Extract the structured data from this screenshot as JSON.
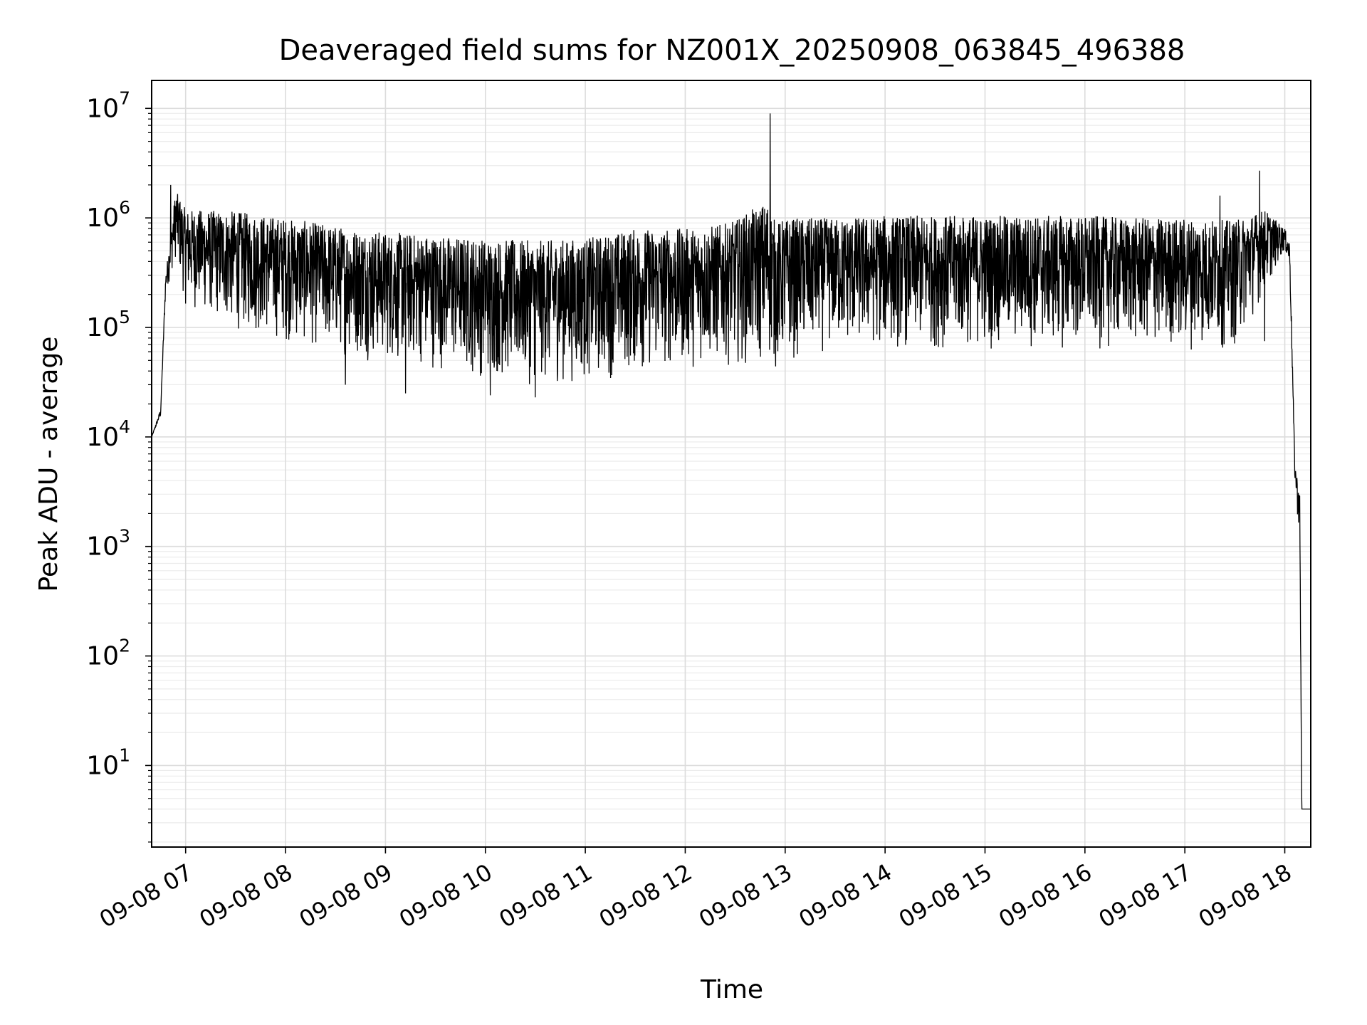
{
  "chart_data": {
    "type": "line",
    "title": "Deaveraged field sums for NZ001X_20250908_063845_496388",
    "xlabel": "Time",
    "ylabel": "Peak ADU - average",
    "yscale": "log",
    "ylim": [
      1.8,
      18000000
    ],
    "xlim_hours": [
      6.66,
      18.26
    ],
    "x_tick_labels": [
      "09-08 07",
      "09-08 08",
      "09-08 09",
      "09-08 10",
      "09-08 11",
      "09-08 12",
      "09-08 13",
      "09-08 14",
      "09-08 15",
      "09-08 16",
      "09-08 17",
      "09-08 18"
    ],
    "x_tick_hours": [
      7,
      8,
      9,
      10,
      11,
      12,
      13,
      14,
      15,
      16,
      17,
      18
    ],
    "y_ticks": [
      {
        "value": 10,
        "base": "10",
        "exp": "1"
      },
      {
        "value": 100,
        "base": "10",
        "exp": "2"
      },
      {
        "value": 1000,
        "base": "10",
        "exp": "3"
      },
      {
        "value": 10000,
        "base": "10",
        "exp": "4"
      },
      {
        "value": 100000,
        "base": "10",
        "exp": "5"
      },
      {
        "value": 1000000,
        "base": "10",
        "exp": "6"
      },
      {
        "value": 10000000,
        "base": "10",
        "exp": "7"
      }
    ],
    "grid": true,
    "line_color": "#000000",
    "series": [
      {
        "name": "deaveraged field sums",
        "envelope": {
          "x_hours": [
            6.66,
            6.75,
            6.8,
            6.9,
            7.0,
            7.5,
            8.0,
            8.5,
            9.0,
            9.5,
            10.0,
            10.5,
            11.0,
            11.5,
            12.0,
            12.45,
            12.85,
            12.9,
            13.0,
            13.5,
            14.0,
            14.5,
            15.0,
            15.5,
            16.0,
            16.5,
            17.0,
            17.5,
            17.8,
            18.0,
            18.05,
            18.1,
            18.15,
            18.17,
            18.26
          ],
          "upper": [
            10000,
            18000,
            300000,
            1800000,
            1200000,
            1150000,
            1000000,
            850000,
            750000,
            700000,
            650000,
            620000,
            650000,
            800000,
            800000,
            900000,
            1500000,
            900000,
            1000000,
            1000000,
            1050000,
            1050000,
            1050000,
            1050000,
            1050000,
            1000000,
            1000000,
            950000,
            1200000,
            800000,
            600000,
            6000,
            3000,
            4,
            4
          ],
          "lower": [
            10000,
            15000,
            200000,
            400000,
            150000,
            90000,
            70000,
            55000,
            45000,
            40000,
            32000,
            28000,
            30000,
            35000,
            40000,
            45000,
            40000,
            35000,
            45000,
            60000,
            60000,
            60000,
            60000,
            60000,
            60000,
            60000,
            60000,
            60000,
            200000,
            500000,
            300000,
            4000,
            1000,
            4,
            4
          ]
        },
        "spikes": [
          {
            "x_hours": 6.85,
            "value": 2000000
          },
          {
            "x_hours": 8.6,
            "value": 30000
          },
          {
            "x_hours": 9.2,
            "value": 25000
          },
          {
            "x_hours": 10.05,
            "value": 24000
          },
          {
            "x_hours": 10.5,
            "value": 23000
          },
          {
            "x_hours": 12.85,
            "value": 9000000
          },
          {
            "x_hours": 17.35,
            "value": 1600000
          },
          {
            "x_hours": 17.75,
            "value": 2700000
          },
          {
            "x_hours": 17.8,
            "value": 75000
          }
        ]
      }
    ]
  }
}
